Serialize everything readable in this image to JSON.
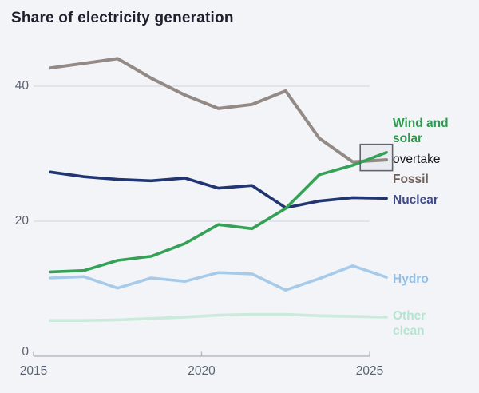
{
  "title": "Share of electricity generation",
  "colors": {
    "background": "#f3f4f8",
    "title_text": "#1d202c",
    "tick_text": "#5b6272",
    "gridline": "#d8dbe2",
    "axis_line": "#b6bbc6",
    "highlight_box_border": "#5f646e",
    "highlight_box_fill": "#e9ebf1"
  },
  "chart_data": {
    "type": "line",
    "x": [
      2015.5,
      2016.5,
      2017.5,
      2018.5,
      2019.5,
      2020.5,
      2021.5,
      2022.5,
      2023.5,
      2024.5,
      2025.5
    ],
    "series": [
      {
        "name": "Fossil",
        "color": "#938a86",
        "width": 4,
        "values": [
          42.7,
          43.4,
          44.1,
          41.2,
          38.7,
          36.7,
          37.3,
          39.3,
          32.3,
          28.8,
          29.1
        ]
      },
      {
        "name": "Nuclear",
        "color": "#203572",
        "width": 3.6,
        "values": [
          27.3,
          26.6,
          26.2,
          26.0,
          26.4,
          24.9,
          25.3,
          22.0,
          23.0,
          23.5,
          23.4
        ]
      },
      {
        "name": "Hydro",
        "color": "#a6cbea",
        "width": 3.6,
        "values": [
          11.6,
          11.8,
          10.1,
          11.6,
          11.1,
          12.4,
          12.2,
          9.8,
          11.5,
          13.4,
          11.7
        ]
      },
      {
        "name": "Other clean",
        "color": "#cbeadb",
        "width": 3.6,
        "values": [
          5.3,
          5.3,
          5.4,
          5.6,
          5.8,
          6.1,
          6.2,
          6.2,
          6.0,
          5.9,
          5.8
        ]
      },
      {
        "name": "Wind and solar",
        "color": "#35a156",
        "width": 3.6,
        "values": [
          12.5,
          12.7,
          14.2,
          14.8,
          16.7,
          19.5,
          18.9,
          21.9,
          26.9,
          28.3,
          30.2
        ]
      }
    ],
    "xlabel": "",
    "ylabel": "",
    "xlim": [
      2015,
      2025.9
    ],
    "ylim": [
      0,
      47
    ],
    "x_ticks": [
      2015,
      2020,
      2025
    ],
    "y_ticks": [
      0,
      20,
      40
    ],
    "grid": "horizontal (at 20 and 40)",
    "legend_position": "right of lines, as colored direct labels",
    "annotations": {
      "wind_solar_label": "Wind and solar",
      "overtake_label": "overtake",
      "fossil_label": "Fossil",
      "nuclear_label": "Nuclear",
      "hydro_label": "Hydro",
      "other_clean_label": "Other clean",
      "label_colors": {
        "wind_solar": "#2d9b4f",
        "overtake": "#15171e",
        "fossil": "#6e625d",
        "nuclear": "#3f4a86",
        "hydro": "#90c0e7",
        "other_clean": "#b7e4d0"
      },
      "highlight_box": {
        "x": [
          2024.72,
          2025.68
        ],
        "y": [
          27.5,
          31.4
        ]
      }
    }
  }
}
